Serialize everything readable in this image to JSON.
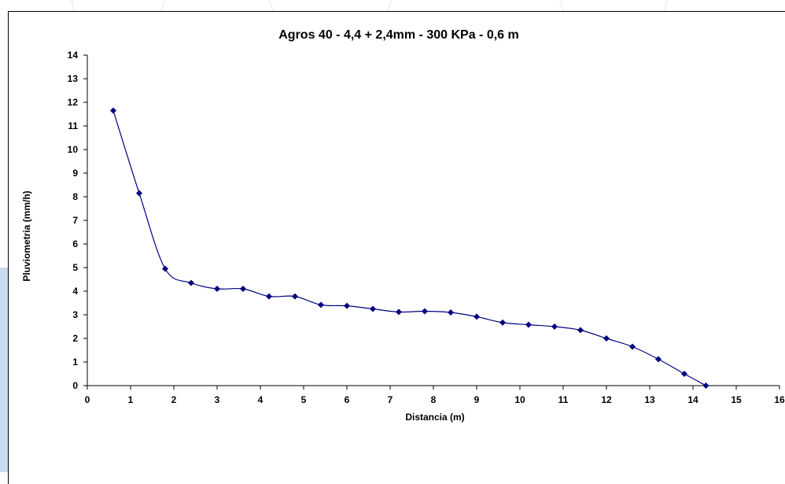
{
  "colors": {
    "series": "#000080",
    "axis": "#000000",
    "background": "#ffffff",
    "outer_decor": "#a9c7e5"
  },
  "chart_data": {
    "type": "line",
    "title": "Agros 40 - 4,4 + 2,4mm - 300 KPa - 0,6 m",
    "xlabel": "Distancia (m)",
    "ylabel": "Pluviometria (mm/h)",
    "xlim": [
      0,
      16
    ],
    "ylim": [
      0,
      14
    ],
    "xticks": [
      "0",
      "1",
      "2",
      "3",
      "4",
      "5",
      "6",
      "7",
      "8",
      "9",
      "10",
      "11",
      "12",
      "13",
      "14",
      "15",
      "16"
    ],
    "yticks": [
      "0",
      "1",
      "2",
      "3",
      "4",
      "5",
      "6",
      "7",
      "8",
      "9",
      "10",
      "11",
      "12",
      "13",
      "14"
    ],
    "grid": false,
    "legend": "none",
    "marker": "diamond",
    "smoothed": true,
    "series": [
      {
        "x": [
          0.6,
          1.2,
          1.8,
          2.4,
          3.0,
          3.6,
          4.2,
          4.8,
          5.4,
          6.0,
          6.6,
          7.2,
          7.8,
          8.4,
          9.0,
          9.6,
          10.2,
          10.8,
          11.4,
          12.0,
          12.6,
          13.2,
          13.8,
          14.3
        ],
        "values": [
          11.65,
          8.15,
          4.95,
          4.35,
          4.1,
          4.1,
          3.78,
          3.78,
          3.42,
          3.38,
          3.25,
          3.12,
          3.15,
          3.1,
          2.92,
          2.67,
          2.58,
          2.5,
          2.35,
          2.0,
          1.65,
          1.12,
          0.5,
          0.0
        ]
      }
    ]
  }
}
